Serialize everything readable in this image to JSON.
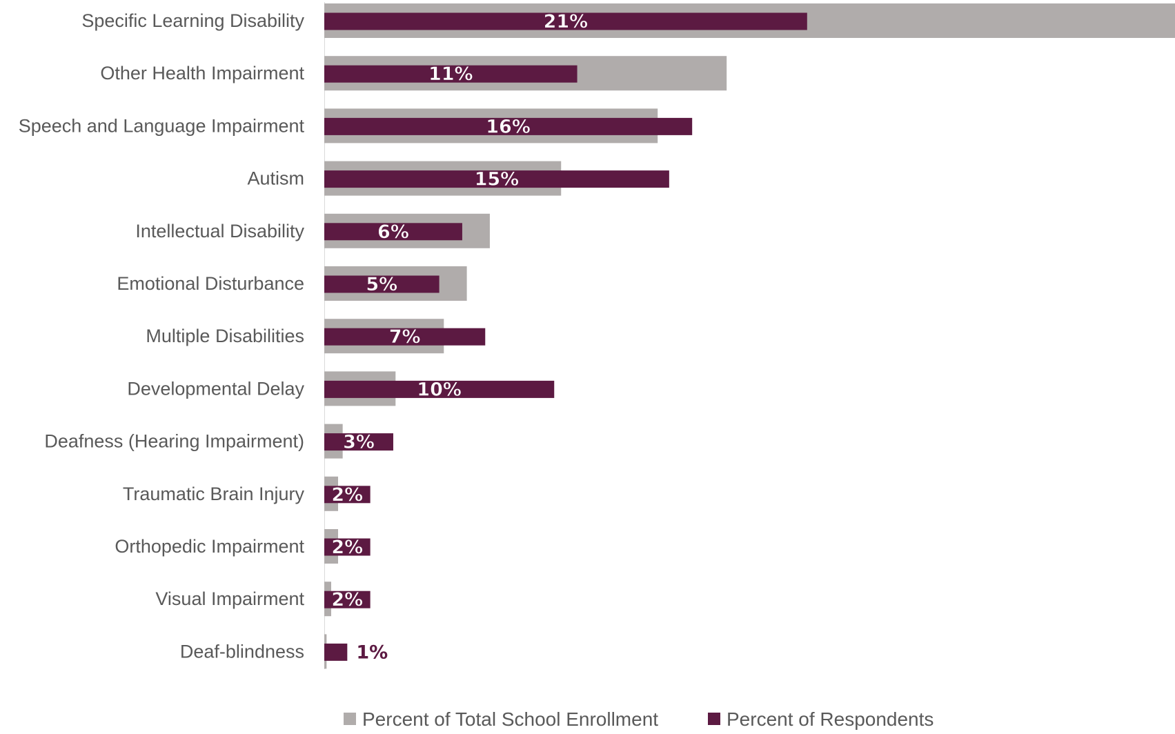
{
  "chart_data": {
    "type": "bar",
    "orientation": "horizontal",
    "categories": [
      "Specific Learning Disability",
      "Other Health Impairment",
      "Speech and Language Impairment",
      "Autism",
      "Intellectual Disability",
      "Emotional Disturbance",
      "Multiple Disabilities",
      "Developmental Delay",
      "Deafness (Hearing Impairment)",
      "Traumatic Brain Injury",
      "Orthopedic Impairment",
      "Visual Impairment",
      "Deaf-blindness"
    ],
    "series": [
      {
        "name": "Percent of Total School Enrollment",
        "color": "#b0acab",
        "values": [
          37,
          17.5,
          14.5,
          10.3,
          7.2,
          6.2,
          5.2,
          3.1,
          0.8,
          0.6,
          0.6,
          0.3,
          0.1
        ]
      },
      {
        "name": "Percent of Respondents",
        "color": "#5c1a42",
        "values": [
          21,
          11,
          16,
          15,
          6,
          5,
          7,
          10,
          3,
          2,
          2,
          2,
          1
        ],
        "data_labels": [
          "21%",
          "11%",
          "16%",
          "15%",
          "6%",
          "5%",
          "7%",
          "10%",
          "3%",
          "2%",
          "2%",
          "2%",
          "1%"
        ]
      }
    ],
    "xlim": [
      0,
      37
    ],
    "title": "",
    "xlabel": "",
    "ylabel": "",
    "grid": false,
    "legend": "bottom"
  }
}
